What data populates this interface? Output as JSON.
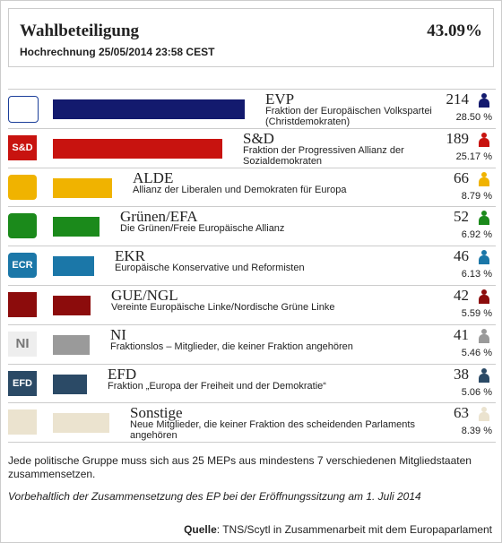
{
  "chart_data": {
    "type": "bar",
    "title": "Wahlbeteiligung",
    "headline_value": "43.09%",
    "subtitle": "Hochrechnung 25/05/2014 23:58 CEST",
    "categories": [
      "EVP",
      "S&D",
      "ALDE",
      "Grünen/EFA",
      "EKR",
      "GUE/NGL",
      "NI",
      "EFD",
      "Sonstige"
    ],
    "descriptions": [
      "Fraktion der Europäischen Volkspartei (Christdemokraten)",
      "Fraktion der Progressiven Allianz der Sozialdemokraten",
      "Allianz der Liberalen und Demokraten für Europa",
      "Die Grünen/Freie Europäische Allianz",
      "Europäische Konservative und Reformisten",
      "Vereinte Europäische Linke/Nordische Grüne Linke",
      "Fraktionslos – Mitglieder, die keiner Fraktion angehören",
      "Fraktion „Europa der Freiheit und der Demokratie“",
      "Neue Mitglieder, die keiner Fraktion des scheidenden Parlaments angehören"
    ],
    "values": [
      214,
      189,
      66,
      52,
      46,
      42,
      41,
      38,
      63
    ],
    "shares": [
      "28.50 %",
      "25.17 %",
      "8.79 %",
      "6.92 %",
      "6.13 %",
      "5.59 %",
      "5.46 %",
      "5.06 %",
      "8.39 %"
    ],
    "colors": [
      "#131a6e",
      "#c8130f",
      "#f0b300",
      "#1b8a1b",
      "#1b77a8",
      "#8c0c0c",
      "#9a9a9a",
      "#2b4a66",
      "#ebe3cf"
    ],
    "logo_texts": {
      "1": "S&D",
      "4": "ECR",
      "6": "NI",
      "7": "EFD"
    },
    "notes": [
      "Jede politische Gruppe muss sich aus 25 MEPs aus mindestens 7 verschiedenen Mitgliedstaaten zusammensetzen.",
      "Vorbehaltlich der Zusammensetzung des EP bei der Eröffnungssitzung am 1. Juli 2014"
    ],
    "source_label": "Quelle",
    "source": ": TNS/Scytl in Zusammenarbeit mit dem Europaparlament"
  }
}
